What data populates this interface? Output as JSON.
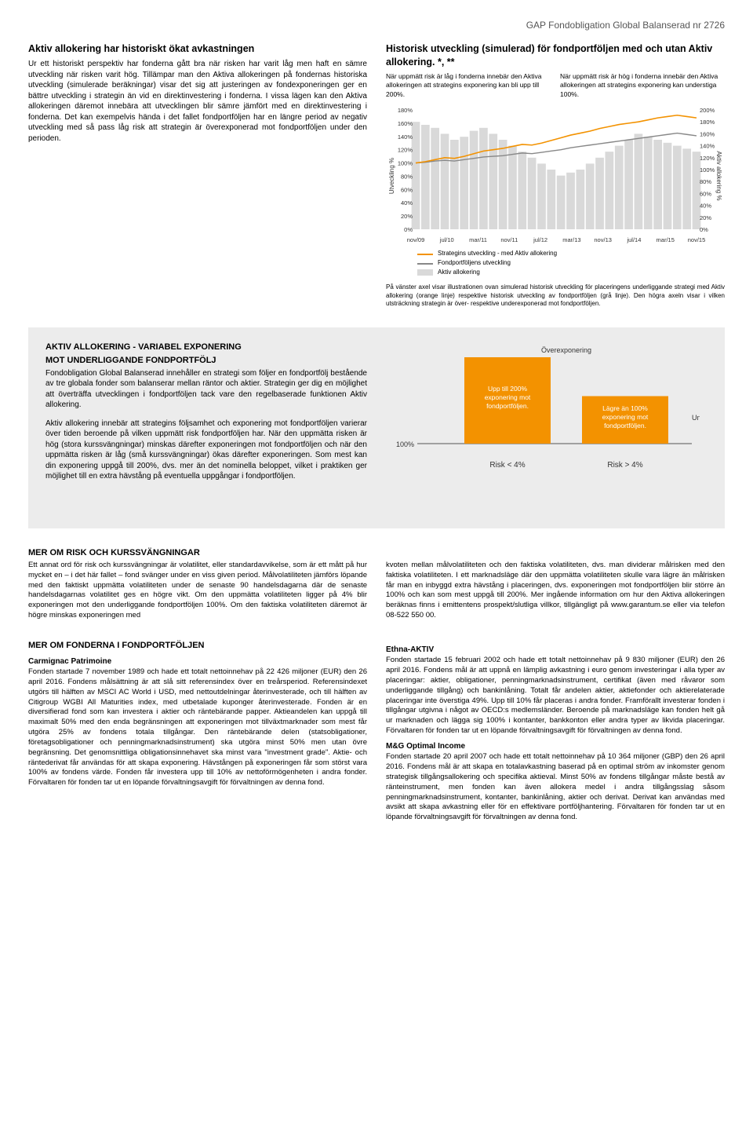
{
  "header": {
    "doc_title": "GAP Fondobligation Global Balanserad nr 2726"
  },
  "section1": {
    "title": "Aktiv allokering har historiskt ökat avkastningen",
    "body": "Ur ett historiskt perspektiv har fonderna gått bra när risken har varit låg men haft en sämre utveckling när risken varit hög. Tillämpar man den Aktiva allokeringen på fondernas historiska utveckling (simulerade beräkningar) visar det sig att justeringen av fondexponeringen ger en bättre utveckling i strategin än vid en direktinvestering i fonderna. I vissa lägen kan den Aktiva allokeringen däremot innebära att utvecklingen blir sämre jämfört med en direktinvestering i fonderna. Det kan exempelvis hända i det fallet fondportföljen har en längre period av negativ utveckling med så pass låg risk att strategin är överexponerad mot fondportföljen under den perioden."
  },
  "chart1": {
    "title": "Historisk utveckling (simulerad) för fondportföljen med och utan Aktiv allokering. *, **",
    "note_left": "När uppmätt risk är låg i fonderna innebär den Aktiva allokeringen att strategins exponering kan bli upp till 200%.",
    "note_right": "När uppmätt risk är hög i fonderna innebär den Aktiva allokeringen att strategins exponering kan understiga 100%.",
    "type": "line_with_bars",
    "y_left_label": "Utveckling %",
    "y_right_label": "Aktiv allokering %",
    "y_left_ticks": [
      "180%",
      "160%",
      "140%",
      "120%",
      "100%",
      "80%",
      "60%",
      "40%",
      "20%",
      "0%"
    ],
    "y_right_ticks": [
      "200%",
      "180%",
      "160%",
      "140%",
      "120%",
      "100%",
      "80%",
      "60%",
      "40%",
      "20%",
      "0%"
    ],
    "x_ticks": [
      "nov/09",
      "jul/10",
      "mar/11",
      "nov/11",
      "jul/12",
      "mar/13",
      "nov/13",
      "jul/14",
      "mar/15",
      "nov/15"
    ],
    "colors": {
      "line_strategy": "#f39200",
      "line_portfolio": "#888888",
      "bars": "#d9d9d9",
      "grid": "#e5e5e5",
      "background": "#ffffff"
    },
    "series_strategy": [
      100,
      102,
      105,
      108,
      107,
      110,
      114,
      118,
      120,
      122,
      125,
      128,
      127,
      130,
      134,
      138,
      142,
      145,
      148,
      152,
      155,
      158,
      160,
      162,
      165,
      168,
      170,
      172,
      170,
      168
    ],
    "series_portfolio": [
      100,
      101,
      103,
      104,
      103,
      105,
      107,
      109,
      110,
      111,
      113,
      115,
      114,
      116,
      118,
      120,
      123,
      125,
      127,
      129,
      131,
      133,
      135,
      137,
      139,
      141,
      143,
      145,
      143,
      141
    ],
    "bars_allocation": [
      180,
      175,
      170,
      160,
      150,
      155,
      165,
      170,
      160,
      150,
      140,
      130,
      120,
      110,
      100,
      90,
      95,
      100,
      110,
      120,
      130,
      140,
      150,
      160,
      155,
      150,
      145,
      140,
      135,
      130
    ],
    "legend": [
      {
        "label": "Strategins utveckling - med Aktiv allokering",
        "type": "line",
        "color": "#f39200"
      },
      {
        "label": "Fondportföljens utveckling",
        "type": "line",
        "color": "#888888"
      },
      {
        "label": "Aktiv allokering",
        "type": "bar",
        "color": "#d9d9d9"
      }
    ],
    "caption": "På vänster axel visar illustrationen ovan simulerad historisk utveckling för placeringens underliggande strategi med Aktiv allokering (orange linje) respektive historisk utveckling av fondportföljen (grå linje). Den högra axeln visar i vilken utsträckning strategin är över- respektive underexponerad mot fondportföljen."
  },
  "section2": {
    "title1": "AKTIV ALLOKERING - VARIABEL EXPONERING",
    "title2": "MOT UNDERLIGGANDE FONDPORTFÖLJ",
    "p1": "Fondobligation Global Balanserad innehåller en strategi som följer en fondportfölj bestående av tre globala fonder som balanserar mellan räntor och aktier. Strategin ger dig en möjlighet att överträffa utvecklingen i fondportföljen tack vare den regelbaserade funktionen Aktiv allokering.",
    "p2": "Aktiv allokering innebär att strategins följsamhet och exponering mot fondportföljen varierar över tiden beroende på vilken uppmätt risk fondportföljen har. När den uppmätta risken är hög (stora kurssvängningar) minskas därefter exponeringen mot fondportföljen och när den uppmätta risken är låg (små kurssvängningar) ökas därefter exponeringen. Som mest kan din exponering uppgå till 200%, dvs. mer än det nominella beloppet, vilket i praktiken ger möjlighet till en extra hävstång på eventuella uppgångar i fondportföljen."
  },
  "exposure_chart": {
    "type": "bar",
    "top_label": "Överexponering",
    "right_label": "Underexponering",
    "baseline_label": "100%",
    "bar1": {
      "text": "Upp till 200% exponering mot fondportföljen.",
      "color": "#f39200",
      "height_pct": 100,
      "footer": "Risk < 4%"
    },
    "bar2": {
      "text": "Lägre än 100% exponering mot fondportföljen.",
      "color": "#f39200",
      "height_pct": 55,
      "footer": "Risk > 4%"
    }
  },
  "section3": {
    "title": "MER OM RISK OCH KURSSVÄNGNINGAR",
    "left": "Ett annat ord för risk och kurssvängningar är volatilitet, eller standardavvikelse, som är ett mått på hur mycket en – i det här fallet – fond svänger under en viss given period. Målvolatiliteten jämförs löpande med den faktiskt uppmätta volatiliteten under de senaste 90 handelsdagarna där de senaste handelsdagarnas volatilitet ges en högre vikt. Om den uppmätta volatiliteten ligger på 4% blir exponeringen mot den underliggande fondportföljen 100%. Om den faktiska volatiliteten däremot är högre minskas exponeringen med",
    "right": "kvoten mellan målvolatiliteten och den faktiska volatiliteten, dvs. man dividerar målrisken med den faktiska volatiliteten. I ett marknadsläge där den uppmätta volatiliteten skulle vara lägre än målrisken får man en inbyggd extra hävstång i placeringen, dvs. exponeringen mot fondportföljen blir större än 100% och kan som mest uppgå till 200%. Mer ingående information om hur den Aktiva allokeringen beräknas finns i emittentens prospekt/slutliga villkor, tillgängligt på www.garantum.se eller via telefon 08-522 550 00."
  },
  "section4": {
    "title": "MER OM FONDERNA I FONDPORTFÖLJEN",
    "f1_title": "Carmignac Patrimoine",
    "f1_body": "Fonden startade 7 november 1989 och hade ett totalt nettoinnehav på 22 426 miljoner (EUR) den 26 april 2016. Fondens målsättning är att slå sitt referensindex över en treårsperiod. Referensindexet utgörs till hälften av MSCI AC World i USD, med nettoutdelningar återinvesterade, och till hälften av Citigroup WGBI All Maturities index, med utbetalade kuponger återinvesterade. Fonden är en diversifierad fond som kan investera i aktier och räntebärande papper. Aktieandelen kan uppgå till maximalt 50% med den enda begränsningen att exponeringen mot tillväxtmarknader som mest får utgöra 25% av fondens totala tillgångar. Den räntebärande delen (statsobligationer, företagsobligationer och penningmarknadsinstrument) ska utgöra minst 50% men utan övre begränsning. Det genomsnittliga obligationsinnehavet ska minst vara \"investment grade\". Aktie- och räntederivat får användas för att skapa exponering. Hävstången på exponeringen får som störst vara 100% av fondens värde. Fonden får investera upp till 10% av nettoförmögenheten i andra fonder. Förvaltaren för fonden tar ut en löpande förvaltningsavgift för förvaltningen av denna fond.",
    "f2_title": "Ethna-AKTIV",
    "f2_body": "Fonden startade 15 februari 2002 och hade ett totalt nettoinnehav på 9 830 miljoner (EUR) den 26 april 2016. Fondens mål är att uppnå en lämplig avkastning i euro genom investeringar i alla typer av placeringar: aktier, obligationer, penningmarknadsinstrument, certifikat (även med råvaror som underliggande tillgång) och bankinlåning. Totalt får andelen aktier, aktiefonder och aktierelaterade placeringar inte överstiga 49%. Upp till 10% får placeras i andra fonder. Framförallt investerar fonden i tillgångar utgivna i något av OECD:s medlemsländer. Beroende på marknadsläge kan fonden helt gå ur marknaden och lägga sig 100% i kontanter, bankkonton eller andra typer av likvida placeringar. Förvaltaren för fonden tar ut en löpande förvaltningsavgift för förvaltningen av denna fond.",
    "f3_title": "M&G Optimal Income",
    "f3_body": "Fonden startade 20 april 2007 och hade ett totalt nettoinnehav på 10 364 miljoner (GBP) den 26 april 2016. Fondens mål är att skapa en totalavkastning baserad på en optimal ström av inkomster genom strategisk tillgångsallokering och specifika aktieval. Minst 50% av fondens tillgångar måste bestå av ränteinstrument, men fonden kan även allokera medel i andra tillgångsslag såsom penningmarknadsinstrument, kontanter, bankinlåning, aktier och derivat. Derivat kan användas med avsikt att skapa avkastning eller för en effektivare portföljhantering. Förvaltaren för fonden tar ut en löpande förvaltningsavgift för förvaltningen av denna fond."
  }
}
